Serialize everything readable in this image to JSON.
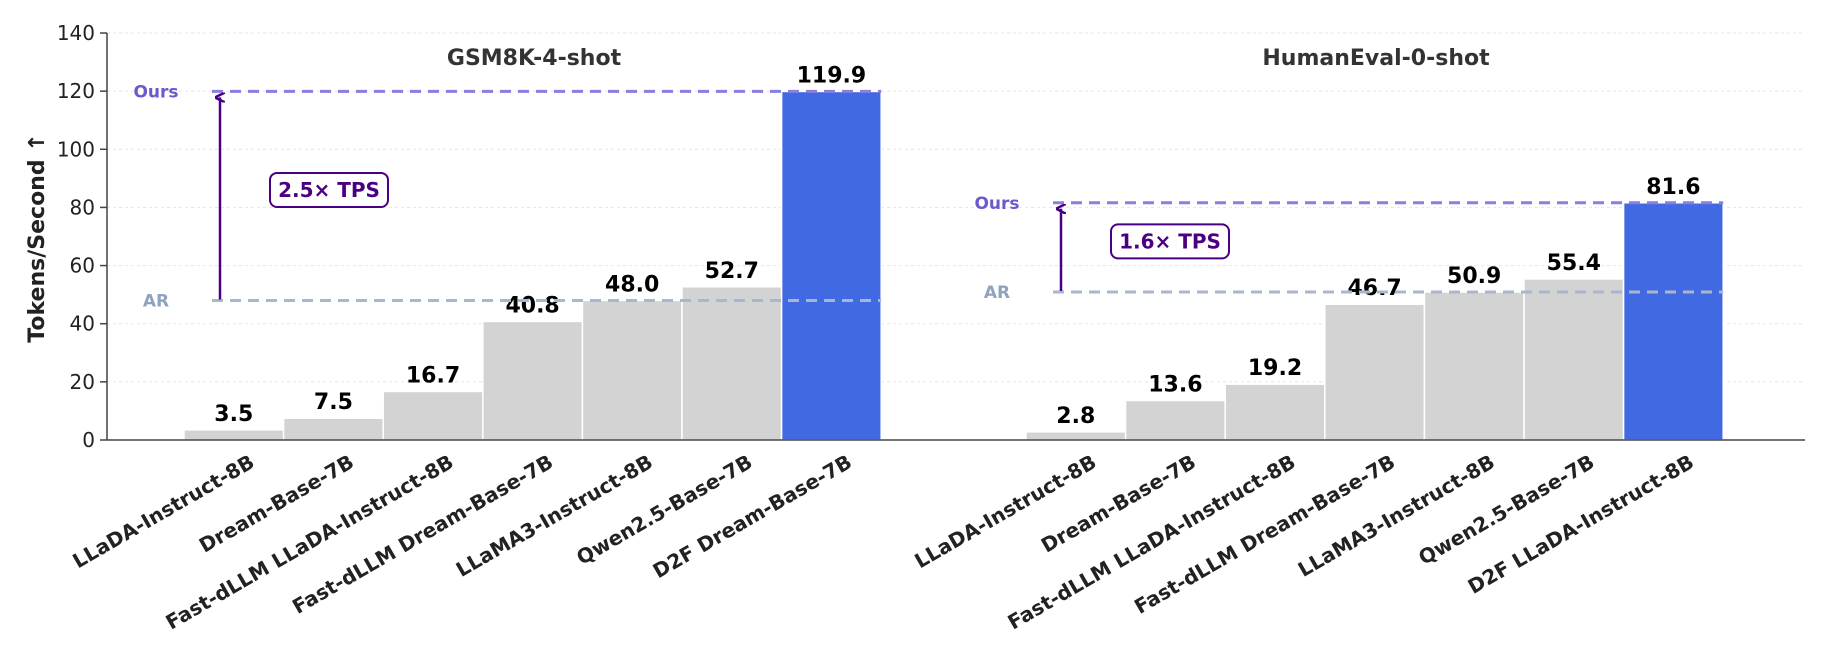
{
  "chart_data": {
    "type": "bar",
    "ylabel": "Tokens/Second ↑",
    "ylim": [
      0,
      140
    ],
    "yticks": [
      0,
      20,
      40,
      60,
      80,
      100,
      120,
      140
    ],
    "grid": true,
    "colors": {
      "baseline": "#d3d3d3",
      "highlight": "#4169e1",
      "ours_line": "#8a7fe0",
      "ar_line": "#a9b6cf",
      "arrow": "#4b0082"
    },
    "panels": [
      {
        "title": "GSM8K-4-shot",
        "categories": [
          "LLaDA-Instruct-8B",
          "Dream-Base-7B",
          "Fast-dLLM LLaDA-Instruct-8B",
          "Fast-dLLM Dream-Base-7B",
          "LLaMA3-Instruct-8B",
          "Qwen2.5-Base-7B",
          "D2F Dream-Base-7B"
        ],
        "values": [
          3.5,
          7.5,
          16.7,
          40.8,
          48.0,
          52.7,
          119.9
        ],
        "value_labels": [
          "3.5",
          "7.5",
          "16.7",
          "40.8",
          "48.0",
          "52.7",
          "119.9"
        ],
        "highlight_index": 6,
        "ours": {
          "label": "Ours",
          "value": 119.9
        },
        "ar": {
          "label": "AR",
          "value": 48.0
        },
        "speedup": "2.5× TPS"
      },
      {
        "title": "HumanEval-0-shot",
        "categories": [
          "LLaDA-Instruct-8B",
          "Dream-Base-7B",
          "Fast-dLLM LLaDA-Instruct-8B",
          "Fast-dLLM Dream-Base-7B",
          "LLaMA3-Instruct-8B",
          "Qwen2.5-Base-7B",
          "D2F LLaDA-Instruct-8B"
        ],
        "values": [
          2.8,
          13.6,
          19.2,
          46.7,
          50.9,
          55.4,
          81.6
        ],
        "value_labels": [
          "2.8",
          "13.6",
          "19.2",
          "46.7",
          "50.9",
          "55.4",
          "81.6"
        ],
        "highlight_index": 6,
        "ours": {
          "label": "Ours",
          "value": 81.6
        },
        "ar": {
          "label": "AR",
          "value": 50.9
        },
        "speedup": "1.6× TPS"
      }
    ]
  }
}
